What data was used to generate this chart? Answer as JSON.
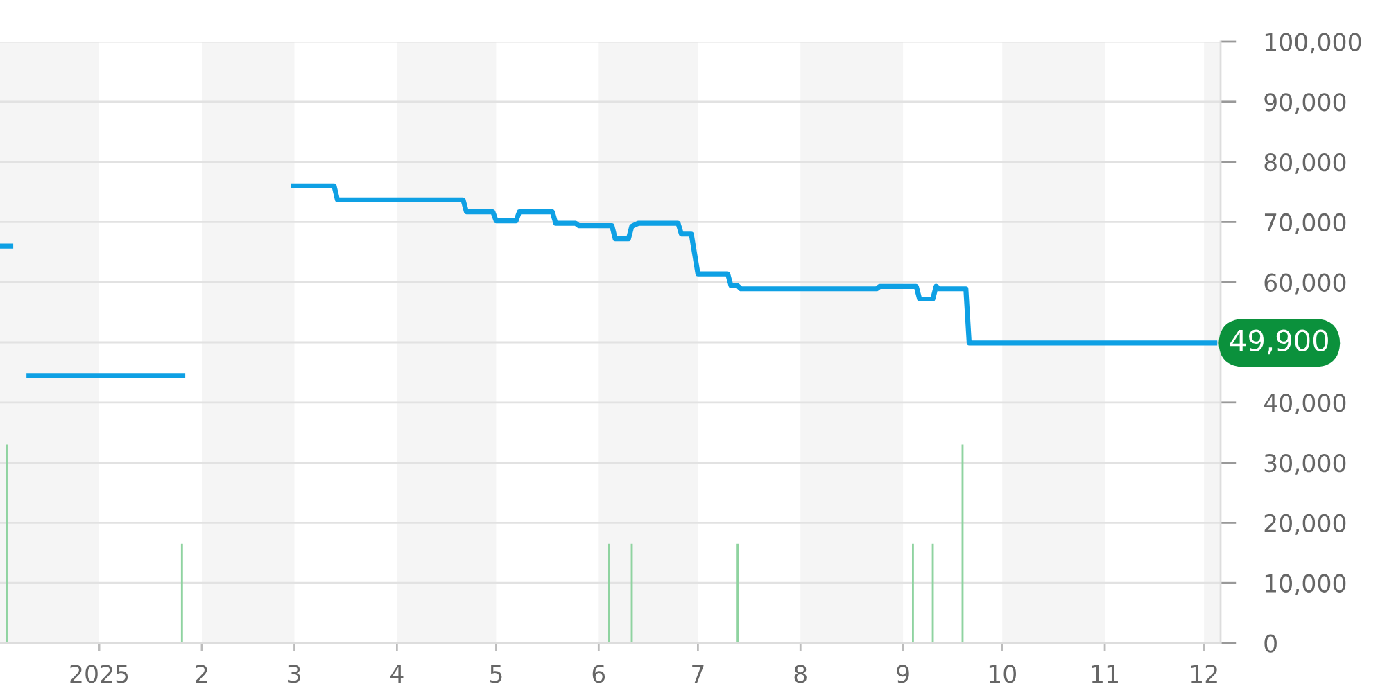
{
  "chart_data": {
    "type": "line",
    "series": [
      {
        "color": "#0ea0e4",
        "x": [
          "2024-12-02",
          "2024-12-06",
          "2024-12-08",
          "2024-12-10",
          "2025-01-27",
          "2025-02-10",
          "2025-02-28",
          "2025-03-13",
          "2025-03-14",
          "2025-04-21",
          "2025-04-22",
          "2025-04-30",
          "2025-05-01",
          "2025-05-07",
          "2025-05-08",
          "2025-05-18",
          "2025-05-19",
          "2025-05-25",
          "2025-05-26",
          "2025-06-05",
          "2025-06-06",
          "2025-06-10",
          "2025-06-11",
          "2025-06-13",
          "2025-06-25",
          "2025-06-26",
          "2025-06-29",
          "2025-07-01",
          "2025-07-10",
          "2025-07-11",
          "2025-07-13",
          "2025-07-14",
          "2025-08-24",
          "2025-08-25",
          "2025-09-05",
          "2025-09-06",
          "2025-09-10",
          "2025-09-11",
          "2025-09-12",
          "2025-09-20",
          "2025-09-21",
          "2025-12-05"
        ],
        "values": [
          66000,
          66000,
          null,
          44500,
          44500,
          null,
          76000,
          76000,
          73700,
          73700,
          71700,
          71700,
          70200,
          70200,
          71700,
          71700,
          69800,
          69800,
          69400,
          69400,
          67200,
          67200,
          69300,
          69800,
          69800,
          68000,
          68000,
          61400,
          61400,
          59400,
          59400,
          58900,
          58900,
          59300,
          59300,
          57200,
          57200,
          59300,
          58900,
          58900,
          49900,
          49900
        ]
      },
      {
        "type": "bar",
        "color": "#8fd3a0",
        "x": [
          "2024-12-04",
          "2025-01-26",
          "2025-06-04",
          "2025-06-11",
          "2025-07-13",
          "2025-09-04",
          "2025-09-10",
          "2025-09-19"
        ],
        "values": [
          33000,
          16500,
          16500,
          16500,
          16500,
          16500,
          16500,
          33000
        ]
      }
    ],
    "xlim": [
      "2024-12-02",
      "2025-12-06"
    ],
    "xticks": [
      {
        "value": "2025-01-01",
        "label": "2025"
      },
      {
        "value": "2025-02-01",
        "label": "2"
      },
      {
        "value": "2025-03-01",
        "label": "3"
      },
      {
        "value": "2025-04-01",
        "label": "4"
      },
      {
        "value": "2025-05-01",
        "label": "5"
      },
      {
        "value": "2025-06-01",
        "label": "6"
      },
      {
        "value": "2025-07-01",
        "label": "7"
      },
      {
        "value": "2025-08-01",
        "label": "8"
      },
      {
        "value": "2025-09-01",
        "label": "9"
      },
      {
        "value": "2025-10-01",
        "label": "10"
      },
      {
        "value": "2025-11-01",
        "label": "11"
      },
      {
        "value": "2025-12-01",
        "label": "12"
      }
    ],
    "ylim": [
      0,
      100000
    ],
    "yticks": [
      0,
      {
        "value": 10000,
        "label": "10,000"
      },
      {
        "value": 20000,
        "label": "20,000"
      },
      {
        "value": 30000,
        "label": "30,000"
      },
      {
        "value": 40000,
        "label": "40,000"
      },
      {
        "value": 50000,
        "label": null
      },
      {
        "value": 60000,
        "label": "60,000"
      },
      {
        "value": 70000,
        "label": "70,000"
      },
      {
        "value": 80000,
        "label": "80,000"
      },
      {
        "value": 90000,
        "label": "90,000"
      },
      {
        "value": 100000,
        "label": "100,000"
      }
    ],
    "grid": "y",
    "bands": [
      {
        "axis": "x",
        "from": "2024-12-02",
        "to": "2025-01-01",
        "color": "#f5f5f5"
      },
      {
        "axis": "x",
        "from": "2025-02-01",
        "to": "2025-03-01",
        "color": "#f5f5f5"
      },
      {
        "axis": "x",
        "from": "2025-04-01",
        "to": "2025-05-01",
        "color": "#f5f5f5"
      },
      {
        "axis": "x",
        "from": "2025-06-01",
        "to": "2025-07-01",
        "color": "#f5f5f5"
      },
      {
        "axis": "x",
        "from": "2025-08-01",
        "to": "2025-09-01",
        "color": "#f5f5f5"
      },
      {
        "axis": "x",
        "from": "2025-10-01",
        "to": "2025-11-01",
        "color": "#f5f5f5"
      },
      {
        "axis": "x",
        "from": "2025-12-01",
        "to": "2025-12-06",
        "color": "#f5f5f5"
      }
    ],
    "annotations": [
      {
        "text": "49,900",
        "x": "2025-12-05",
        "y": 49900
      }
    ]
  }
}
